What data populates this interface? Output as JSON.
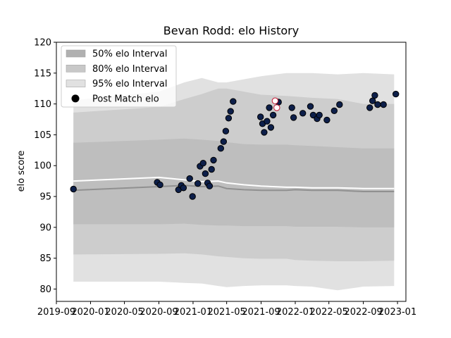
{
  "chart_data": {
    "type": "line",
    "title": "Bevan Rodd: elo History",
    "xlabel": "",
    "ylabel": "elo score",
    "xlim": [
      "2019-09-01",
      "2023-01-31"
    ],
    "ylim": [
      78,
      120
    ],
    "x_ticks": [
      "2019-09",
      "2020-01",
      "2020-05",
      "2020-09",
      "2021-01",
      "2021-05",
      "2021-09",
      "2022-01",
      "2022-05",
      "2022-09",
      "2023-01"
    ],
    "y_ticks": [
      80,
      85,
      90,
      95,
      100,
      105,
      110,
      115,
      120
    ],
    "grid": false,
    "legend": {
      "placement": "top-left",
      "entries": [
        {
          "label": "50% elo Interval",
          "color": "#b0b0b0",
          "kind": "patch"
        },
        {
          "label": "80% elo Interval",
          "color": "#c8c8c8",
          "kind": "patch"
        },
        {
          "label": "95% elo Interval",
          "color": "#e1e1e1",
          "kind": "patch"
        },
        {
          "label": "Post Match elo",
          "color": "#000000",
          "kind": "marker"
        }
      ]
    },
    "band_x": [
      "2019-11-01",
      "2020-09-01",
      "2020-12-01",
      "2021-02-01",
      "2021-04-01",
      "2021-05-01",
      "2021-07-01",
      "2021-09-01",
      "2021-12-01",
      "2022-01-01",
      "2022-03-01",
      "2022-06-01",
      "2022-09-01",
      "2022-12-20"
    ],
    "intervals": [
      {
        "name": "95% elo Interval",
        "color": "#e1e1e1",
        "lower": [
          81.2,
          81.2,
          81.0,
          80.9,
          80.5,
          80.3,
          80.5,
          80.6,
          80.6,
          80.5,
          80.4,
          79.8,
          80.4,
          80.5
        ],
        "upper": [
          110.6,
          112.0,
          113.5,
          114.2,
          113.5,
          113.5,
          114.0,
          114.5,
          115.0,
          115.0,
          115.0,
          114.8,
          115.0,
          114.8
        ]
      },
      {
        "name": "80% elo Interval",
        "color": "#cdcdcd",
        "lower": [
          85.6,
          85.7,
          85.8,
          85.6,
          85.3,
          85.2,
          85.0,
          84.9,
          84.9,
          84.7,
          84.6,
          84.5,
          84.5,
          84.6
        ],
        "upper": [
          108.6,
          109.5,
          110.8,
          111.6,
          112.5,
          112.5,
          112.0,
          111.5,
          111.3,
          111.2,
          111.0,
          110.8,
          110.0,
          110.0
        ]
      },
      {
        "name": "50% elo Interval",
        "color": "#bebebe",
        "lower": [
          90.5,
          90.5,
          90.6,
          90.4,
          90.3,
          90.3,
          90.2,
          90.2,
          90.2,
          90.1,
          90.1,
          90.1,
          90.0,
          90.0
        ],
        "upper": [
          103.7,
          104.2,
          104.4,
          104.2,
          104.0,
          103.8,
          103.5,
          103.4,
          103.4,
          103.3,
          103.2,
          103.0,
          102.8,
          102.8
        ]
      }
    ],
    "mean_line": {
      "color": "#909090",
      "values": [
        96.0,
        96.6,
        96.8,
        96.6,
        96.7,
        96.3,
        96.1,
        96.0,
        96.0,
        96.1,
        96.0,
        96.0,
        95.8,
        95.8
      ]
    },
    "median_line": {
      "color": "#ffffff",
      "values": [
        97.5,
        98.1,
        97.7,
        97.4,
        97.5,
        97.2,
        96.9,
        96.7,
        96.5,
        96.5,
        96.4,
        96.4,
        96.3,
        96.3
      ]
    },
    "series": [
      {
        "name": "Post Match elo",
        "color": "#0d1f4a",
        "edge": "#000000",
        "points": [
          [
            "2019-11-01",
            96.2
          ],
          [
            "2020-08-26",
            97.3
          ],
          [
            "2020-09-05",
            96.9
          ],
          [
            "2020-11-10",
            96.1
          ],
          [
            "2020-11-20",
            96.8
          ],
          [
            "2020-11-28",
            96.4
          ],
          [
            "2020-12-20",
            97.9
          ],
          [
            "2020-12-30",
            95.0
          ],
          [
            "2021-01-18",
            97.1
          ],
          [
            "2021-01-26",
            99.9
          ],
          [
            "2021-02-06",
            100.4
          ],
          [
            "2021-02-14",
            98.7
          ],
          [
            "2021-02-22",
            97.2
          ],
          [
            "2021-03-01",
            96.7
          ],
          [
            "2021-03-08",
            99.4
          ],
          [
            "2021-03-15",
            100.9
          ],
          [
            "2021-04-10",
            102.8
          ],
          [
            "2021-04-20",
            103.9
          ],
          [
            "2021-04-28",
            105.6
          ],
          [
            "2021-05-08",
            107.7
          ],
          [
            "2021-05-15",
            108.8
          ],
          [
            "2021-05-24",
            110.4
          ],
          [
            "2021-08-30",
            107.9
          ],
          [
            "2021-09-06",
            106.8
          ],
          [
            "2021-09-12",
            105.4
          ],
          [
            "2021-09-22",
            107.2
          ],
          [
            "2021-09-30",
            109.4
          ],
          [
            "2021-10-06",
            106.2
          ],
          [
            "2021-10-14",
            108.2
          ],
          [
            "2021-11-02",
            110.3
          ],
          [
            "2021-12-20",
            109.4
          ],
          [
            "2021-12-26",
            107.8
          ],
          [
            "2022-01-28",
            108.5
          ],
          [
            "2022-02-24",
            109.6
          ],
          [
            "2022-03-06",
            108.2
          ],
          [
            "2022-03-20",
            107.6
          ],
          [
            "2022-03-28",
            108.2
          ],
          [
            "2022-04-24",
            107.4
          ],
          [
            "2022-05-20",
            108.9
          ],
          [
            "2022-06-08",
            109.9
          ],
          [
            "2022-09-24",
            109.4
          ],
          [
            "2022-10-04",
            110.5
          ],
          [
            "2022-10-12",
            111.4
          ],
          [
            "2022-10-22",
            109.9
          ],
          [
            "2022-11-12",
            109.9
          ],
          [
            "2022-12-26",
            111.6
          ]
        ]
      },
      {
        "name": "",
        "color": "#ffffff",
        "edge": "#c4122f",
        "points": [
          [
            "2021-10-21",
            110.5
          ],
          [
            "2021-10-27",
            109.4
          ]
        ]
      }
    ]
  }
}
